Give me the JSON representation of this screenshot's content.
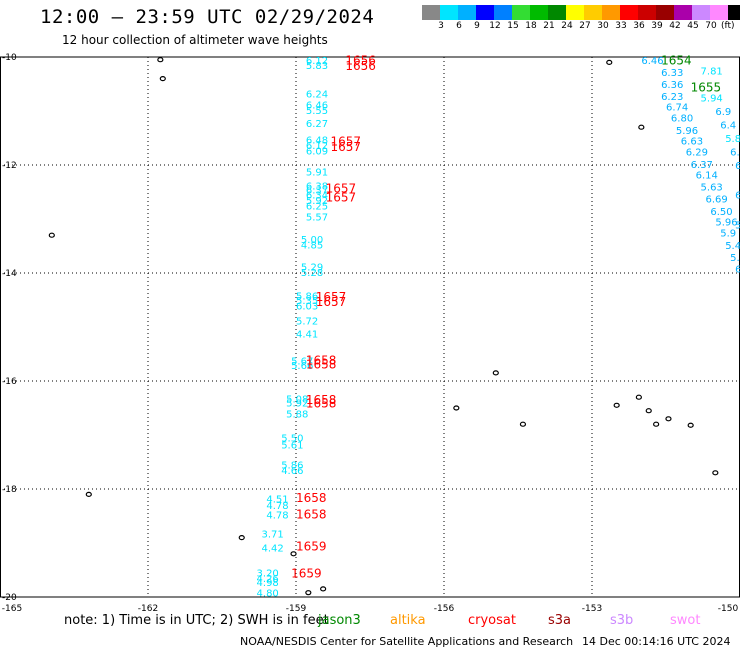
{
  "title": "12:00 – 23:59 UTC 02/29/2024",
  "subtitle": "12 hour collection of altimeter wave heights",
  "colorbar": {
    "colors": [
      "#888888",
      "#00e5ff",
      "#00b0ff",
      "#0000ff",
      "#0080ff",
      "#33dd33",
      "#00bb00",
      "#008800",
      "#ffff00",
      "#ffcc00",
      "#ff9900",
      "#ff0000",
      "#cc0000",
      "#990000",
      "#aa00aa",
      "#cc88ff",
      "#ff88ff",
      "#000000"
    ],
    "labels": [
      "3",
      "6",
      "9",
      "12",
      "15",
      "18",
      "21",
      "24",
      "27",
      "30",
      "33",
      "36",
      "39",
      "42",
      "45",
      "70"
    ],
    "unit": "(ft)"
  },
  "chart_data": {
    "type": "scatter",
    "xlim": [
      -165,
      -150
    ],
    "ylim": [
      -20,
      -10
    ],
    "x_ticks": [
      "-165",
      "-162",
      "-159",
      "-156",
      "-153",
      "-150"
    ],
    "y_ticks": [
      "-10",
      "-12",
      "-14",
      "-16",
      "-18",
      "-20"
    ],
    "wave_labels": [
      {
        "lon": -158.8,
        "lat": -10.06,
        "text": "6.12",
        "color": "#00e5ff"
      },
      {
        "lon": -158.8,
        "lat": -10.15,
        "text": "5.83",
        "color": "#00e5ff"
      },
      {
        "lon": -158.8,
        "lat": -10.68,
        "text": "6.24",
        "color": "#00e5ff"
      },
      {
        "lon": -158.8,
        "lat": -10.88,
        "text": "6.46",
        "color": "#00e5ff"
      },
      {
        "lon": -158.8,
        "lat": -10.98,
        "text": "5.55",
        "color": "#00e5ff"
      },
      {
        "lon": -158.8,
        "lat": -11.22,
        "text": "6.27",
        "color": "#00e5ff"
      },
      {
        "lon": -158.8,
        "lat": -11.53,
        "text": "6.48",
        "color": "#00e5ff"
      },
      {
        "lon": -158.8,
        "lat": -11.63,
        "text": "6.12",
        "color": "#00e5ff"
      },
      {
        "lon": -158.8,
        "lat": -11.73,
        "text": "6.09",
        "color": "#00e5ff"
      },
      {
        "lon": -158.8,
        "lat": -12.12,
        "text": "5.91",
        "color": "#00e5ff"
      },
      {
        "lon": -158.8,
        "lat": -12.38,
        "text": "6.38",
        "color": "#00e5ff"
      },
      {
        "lon": -158.8,
        "lat": -12.45,
        "text": "6.37",
        "color": "#00e5ff"
      },
      {
        "lon": -158.8,
        "lat": -12.55,
        "text": "6.34",
        "color": "#00e5ff"
      },
      {
        "lon": -158.8,
        "lat": -12.65,
        "text": "5.92",
        "color": "#00e5ff"
      },
      {
        "lon": -158.8,
        "lat": -12.75,
        "text": "6.25",
        "color": "#00e5ff"
      },
      {
        "lon": -158.8,
        "lat": -12.95,
        "text": "5.57",
        "color": "#00e5ff"
      },
      {
        "lon": -158.9,
        "lat": -13.37,
        "text": "5.00",
        "color": "#00e5ff"
      },
      {
        "lon": -158.9,
        "lat": -13.47,
        "text": "4.85",
        "color": "#00e5ff"
      },
      {
        "lon": -158.9,
        "lat": -13.88,
        "text": "5.29",
        "color": "#00e5ff"
      },
      {
        "lon": -158.9,
        "lat": -13.98,
        "text": "5.28",
        "color": "#00e5ff"
      },
      {
        "lon": -159.0,
        "lat": -14.42,
        "text": "5.86",
        "color": "#00e5ff"
      },
      {
        "lon": -159.0,
        "lat": -14.5,
        "text": "5.35",
        "color": "#00e5ff"
      },
      {
        "lon": -159.0,
        "lat": -14.6,
        "text": "6.03",
        "color": "#00e5ff"
      },
      {
        "lon": -159.0,
        "lat": -14.88,
        "text": "5.72",
        "color": "#00e5ff"
      },
      {
        "lon": -159.0,
        "lat": -15.12,
        "text": "4.41",
        "color": "#00e5ff"
      },
      {
        "lon": -159.1,
        "lat": -15.62,
        "text": "5.67",
        "color": "#00e5ff"
      },
      {
        "lon": -159.1,
        "lat": -15.7,
        "text": "5.66",
        "color": "#00e5ff"
      },
      {
        "lon": -159.2,
        "lat": -16.32,
        "text": "5.08",
        "color": "#00e5ff"
      },
      {
        "lon": -159.2,
        "lat": -16.4,
        "text": "5.92",
        "color": "#00e5ff"
      },
      {
        "lon": -159.2,
        "lat": -16.6,
        "text": "5.88",
        "color": "#00e5ff"
      },
      {
        "lon": -159.3,
        "lat": -17.05,
        "text": "5.50",
        "color": "#00e5ff"
      },
      {
        "lon": -159.3,
        "lat": -17.18,
        "text": "5.61",
        "color": "#00e5ff"
      },
      {
        "lon": -159.3,
        "lat": -17.55,
        "text": "5.86",
        "color": "#00e5ff"
      },
      {
        "lon": -159.3,
        "lat": -17.65,
        "text": "4.66",
        "color": "#00e5ff"
      },
      {
        "lon": -159.6,
        "lat": -18.18,
        "text": "4.51",
        "color": "#00e5ff"
      },
      {
        "lon": -159.6,
        "lat": -18.3,
        "text": "4.78",
        "color": "#00e5ff"
      },
      {
        "lon": -159.6,
        "lat": -18.47,
        "text": "4.78",
        "color": "#00e5ff"
      },
      {
        "lon": -159.7,
        "lat": -18.82,
        "text": "3.71",
        "color": "#00e5ff"
      },
      {
        "lon": -159.7,
        "lat": -19.08,
        "text": "4.42",
        "color": "#00e5ff"
      },
      {
        "lon": -159.8,
        "lat": -19.55,
        "text": "3.20",
        "color": "#00e5ff"
      },
      {
        "lon": -159.8,
        "lat": -19.65,
        "text": "4.26",
        "color": "#00e5ff"
      },
      {
        "lon": -159.8,
        "lat": -19.72,
        "text": "4.98",
        "color": "#00e5ff"
      },
      {
        "lon": -159.8,
        "lat": -19.92,
        "text": "4.80",
        "color": "#00e5ff"
      },
      {
        "lon": -152.0,
        "lat": -10.06,
        "text": "6.46",
        "color": "#00b0ff"
      },
      {
        "lon": -151.6,
        "lat": -10.28,
        "text": "6.33",
        "color": "#00b0ff"
      },
      {
        "lon": -151.6,
        "lat": -10.5,
        "text": "6.36",
        "color": "#00b0ff"
      },
      {
        "lon": -151.6,
        "lat": -10.72,
        "text": "6.23",
        "color": "#00b0ff"
      },
      {
        "lon": -151.5,
        "lat": -10.92,
        "text": "6.74",
        "color": "#00b0ff"
      },
      {
        "lon": -151.4,
        "lat": -11.12,
        "text": "6.80",
        "color": "#00b0ff"
      },
      {
        "lon": -151.3,
        "lat": -11.35,
        "text": "5.96",
        "color": "#00b0ff"
      },
      {
        "lon": -151.2,
        "lat": -11.55,
        "text": "6.63",
        "color": "#00b0ff"
      },
      {
        "lon": -151.1,
        "lat": -11.75,
        "text": "6.29",
        "color": "#00b0ff"
      },
      {
        "lon": -151.0,
        "lat": -11.98,
        "text": "6.37",
        "color": "#00b0ff"
      },
      {
        "lon": -150.9,
        "lat": -12.18,
        "text": "6.14",
        "color": "#00b0ff"
      },
      {
        "lon": -150.8,
        "lat": -12.4,
        "text": "5.63",
        "color": "#00b0ff"
      },
      {
        "lon": -150.7,
        "lat": -12.62,
        "text": "6.69",
        "color": "#00b0ff"
      },
      {
        "lon": -150.6,
        "lat": -12.85,
        "text": "6.50",
        "color": "#00b0ff"
      },
      {
        "lon": -150.5,
        "lat": -13.05,
        "text": "5.96",
        "color": "#00b0ff"
      },
      {
        "lon": -150.4,
        "lat": -13.25,
        "text": "5.9",
        "color": "#00b0ff"
      },
      {
        "lon": -150.3,
        "lat": -13.48,
        "text": "5.4",
        "color": "#00b0ff"
      },
      {
        "lon": -150.2,
        "lat": -13.7,
        "text": "5.3",
        "color": "#00b0ff"
      },
      {
        "lon": -150.1,
        "lat": -13.92,
        "text": "6",
        "color": "#00b0ff"
      },
      {
        "lon": -150.8,
        "lat": -10.25,
        "text": "7.81",
        "color": "#00e5ff"
      },
      {
        "lon": -150.8,
        "lat": -10.75,
        "text": "5.94",
        "color": "#00e5ff"
      },
      {
        "lon": -150.5,
        "lat": -11.0,
        "text": "6.9",
        "color": "#00b0ff"
      },
      {
        "lon": -150.4,
        "lat": -11.25,
        "text": "6.4",
        "color": "#00b0ff"
      },
      {
        "lon": -150.3,
        "lat": -11.5,
        "text": "5.8",
        "color": "#00e5ff"
      },
      {
        "lon": -150.2,
        "lat": -11.75,
        "text": "6.7",
        "color": "#00b0ff"
      },
      {
        "lon": -150.1,
        "lat": -12.0,
        "text": "6.",
        "color": "#00b0ff"
      },
      {
        "lon": -150.1,
        "lat": -12.55,
        "text": "6.",
        "color": "#00b0ff"
      },
      {
        "lon": -150.1,
        "lat": -13.1,
        "text": "5.",
        "color": "#00b0ff"
      }
    ],
    "time_labels": [
      {
        "lon": -158.0,
        "lat": -10.05,
        "text": "1656",
        "color": "#ff0000"
      },
      {
        "lon": -158.0,
        "lat": -10.15,
        "text": "1656",
        "color": "#ff0000"
      },
      {
        "lon": -158.3,
        "lat": -11.55,
        "text": "1657",
        "color": "#ff0000"
      },
      {
        "lon": -158.3,
        "lat": -11.65,
        "text": "1657",
        "color": "#ff0000"
      },
      {
        "lon": -158.4,
        "lat": -12.42,
        "text": "1657",
        "color": "#ff0000"
      },
      {
        "lon": -158.4,
        "lat": -12.58,
        "text": "1657",
        "color": "#ff0000"
      },
      {
        "lon": -158.6,
        "lat": -14.43,
        "text": "1657",
        "color": "#ff0000"
      },
      {
        "lon": -158.6,
        "lat": -14.52,
        "text": "1657",
        "color": "#ff0000"
      },
      {
        "lon": -158.8,
        "lat": -15.6,
        "text": "1658",
        "color": "#ff0000"
      },
      {
        "lon": -158.8,
        "lat": -15.68,
        "text": "1658",
        "color": "#ff0000"
      },
      {
        "lon": -158.8,
        "lat": -16.33,
        "text": "1658",
        "color": "#ff0000"
      },
      {
        "lon": -158.8,
        "lat": -16.4,
        "text": "1658",
        "color": "#ff0000"
      },
      {
        "lon": -159.0,
        "lat": -18.15,
        "text": "1658",
        "color": "#ff0000"
      },
      {
        "lon": -159.0,
        "lat": -18.45,
        "text": "1658",
        "color": "#ff0000"
      },
      {
        "lon": -159.0,
        "lat": -19.05,
        "text": "1659",
        "color": "#ff0000"
      },
      {
        "lon": -159.1,
        "lat": -19.55,
        "text": "1659",
        "color": "#ff0000"
      },
      {
        "lon": -151.6,
        "lat": -10.05,
        "text": "1654",
        "color": "#008800"
      },
      {
        "lon": -151.0,
        "lat": -10.55,
        "text": "1655",
        "color": "#008800"
      }
    ],
    "islands": [
      {
        "lon": -161.75,
        "lat": -10.05
      },
      {
        "lon": -161.7,
        "lat": -10.4
      },
      {
        "lon": -163.95,
        "lat": -13.3
      },
      {
        "lon": -163.2,
        "lat": -18.1
      },
      {
        "lon": -160.1,
        "lat": -18.9
      },
      {
        "lon": -159.05,
        "lat": -19.2
      },
      {
        "lon": -158.45,
        "lat": -19.85
      },
      {
        "lon": -158.75,
        "lat": -19.92
      },
      {
        "lon": -154.95,
        "lat": -15.85
      },
      {
        "lon": -155.75,
        "lat": -16.5
      },
      {
        "lon": -154.4,
        "lat": -16.8
      },
      {
        "lon": -152.65,
        "lat": -10.1
      },
      {
        "lon": -152.0,
        "lat": -11.3
      },
      {
        "lon": -152.5,
        "lat": -16.45
      },
      {
        "lon": -152.05,
        "lat": -16.3
      },
      {
        "lon": -151.85,
        "lat": -16.55
      },
      {
        "lon": -151.7,
        "lat": -16.8
      },
      {
        "lon": -151.45,
        "lat": -16.7
      },
      {
        "lon": -151.0,
        "lat": -16.82
      },
      {
        "lon": -150.5,
        "lat": -17.7
      }
    ]
  },
  "footer": {
    "note": "note:  1) Time is in UTC;  2) SWH is in feet",
    "legend": [
      {
        "name": "jason3",
        "color": "#008800"
      },
      {
        "name": "altika",
        "color": "#ff9900"
      },
      {
        "name": "cryosat",
        "color": "#ff0000"
      },
      {
        "name": "s3a",
        "color": "#990000"
      },
      {
        "name": "s3b",
        "color": "#cc88ff"
      },
      {
        "name": "swot",
        "color": "#ff88ff"
      }
    ],
    "credit": "NOAA/NESDIS Center for Satellite Applications and Research",
    "generated": "14 Dec 00:14:16 UTC 2024"
  }
}
